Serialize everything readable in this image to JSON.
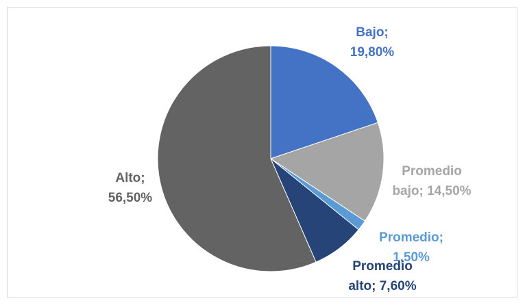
{
  "chart_data": {
    "type": "pie",
    "values": [
      19.8,
      14.5,
      1.5,
      7.6,
      56.5
    ],
    "value_labels": [
      "Bajo; 19,80%",
      "Promedio bajo; 14,50%",
      "Promedio; 1,50%",
      "Promedio alto; 7,60%",
      "Alto; 56,50%"
    ],
    "colors": [
      "#4472c4",
      "#a5a5a5",
      "#5b9bd5",
      "#264478",
      "#636363"
    ]
  }
}
